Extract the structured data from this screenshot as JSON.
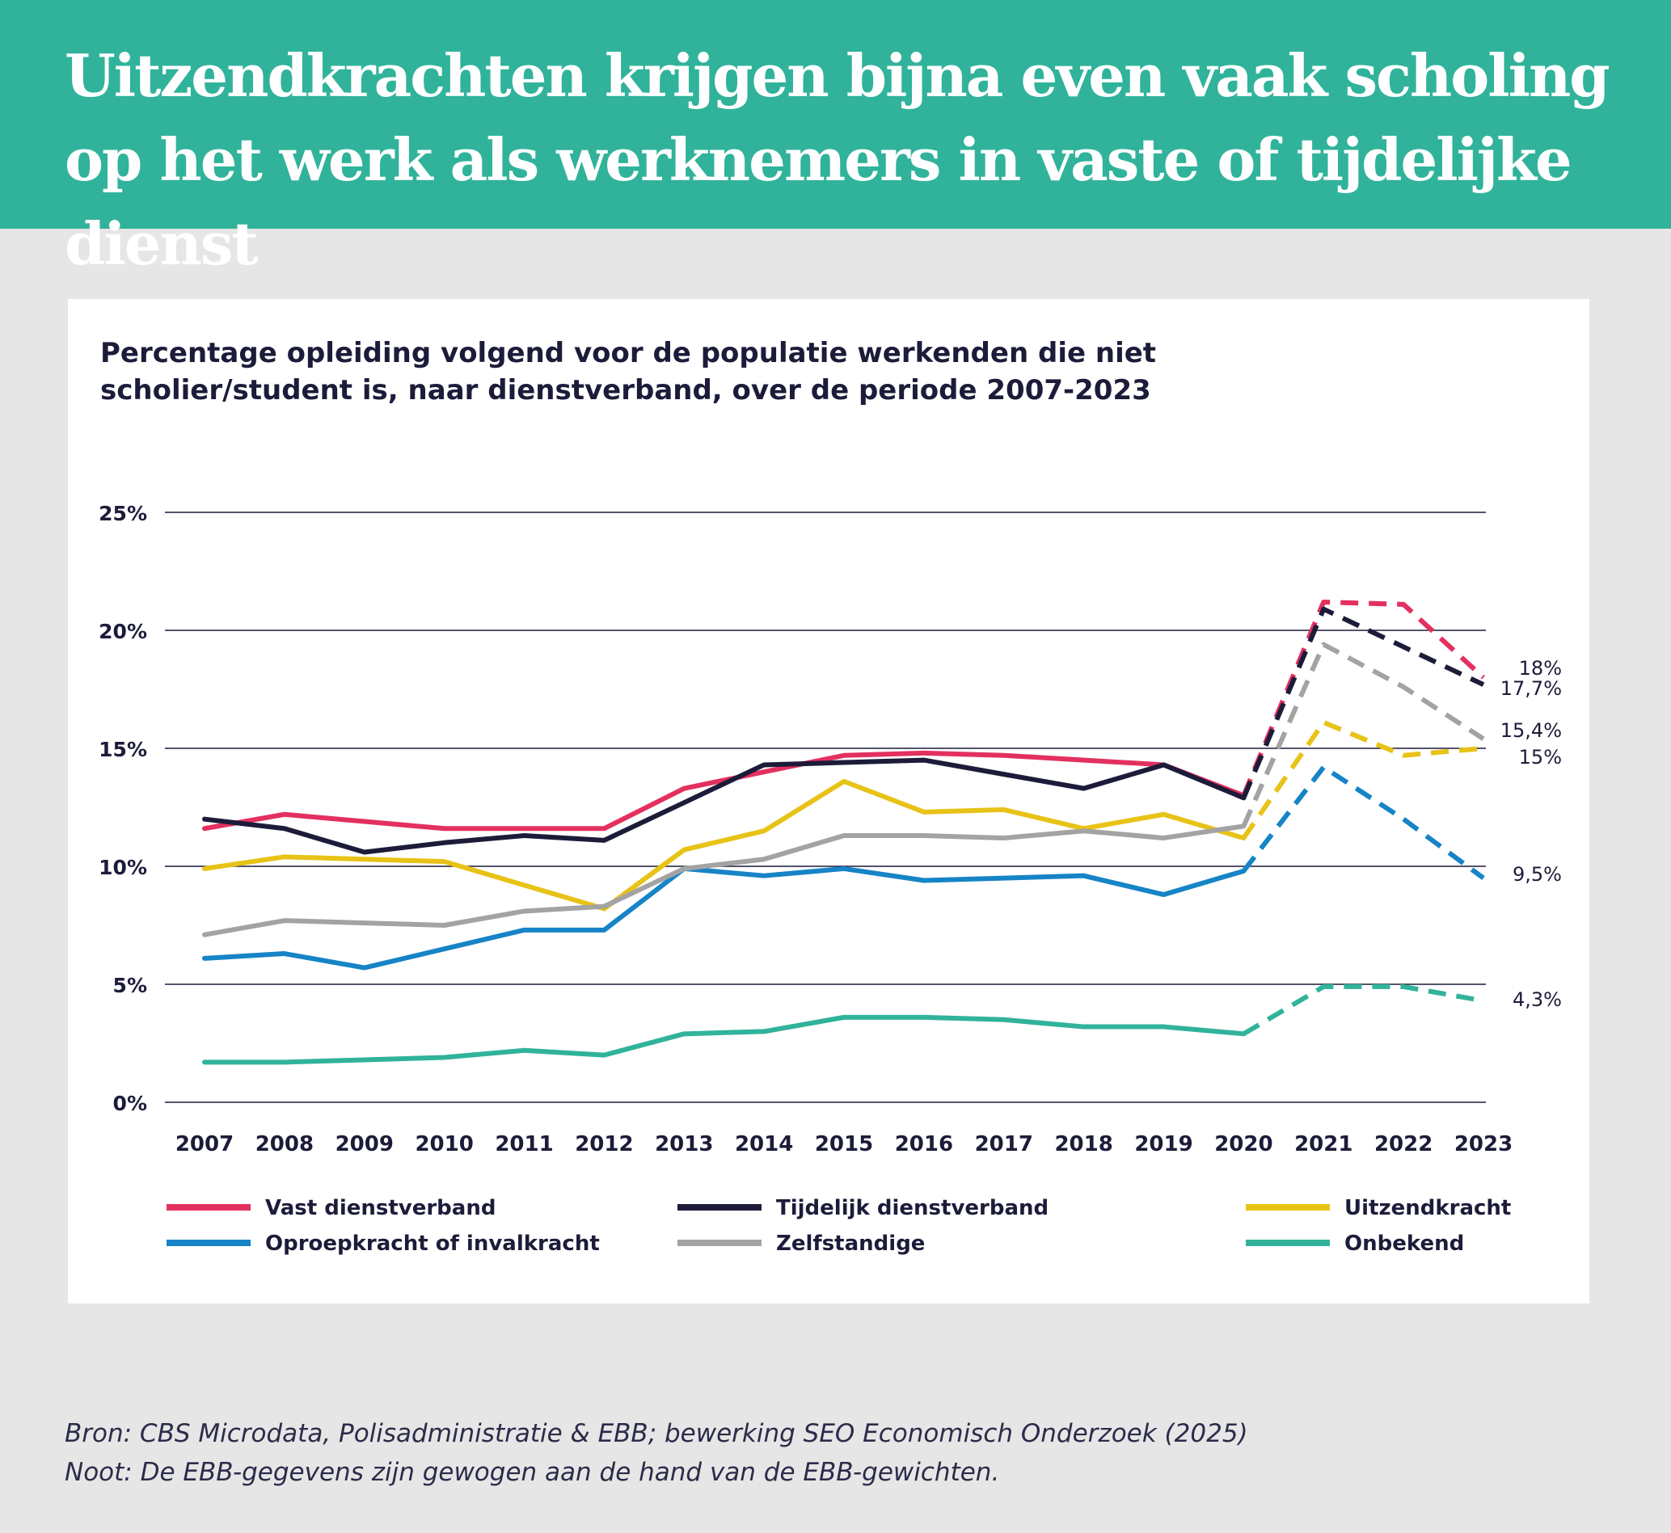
{
  "header": {
    "title": "Uitzendkrachten krijgen bijna even vaak scholing op het werk als werknemers in vaste of tijdelijke dienst"
  },
  "footer": {
    "source": "Bron: CBS Microdata, Polisadministratie & EBB; bewerking SEO Economisch Onderzoek (2025)",
    "note": "Noot: De EBB-gegevens zijn gewogen aan de hand van de EBB-gewichten."
  },
  "colors": {
    "header_bg": "#30b39a",
    "page_bg": "#e6e6e6",
    "text_dark": "#1c1c3a"
  },
  "chart_data": {
    "type": "line",
    "title": "Percentage opleiding volgend voor de populatie werkenden die niet scholier/student is, naar dienstverband, over de periode 2007-2023",
    "xlabel": "",
    "ylabel": "",
    "categories": [
      "2007",
      "2008",
      "2009",
      "2010",
      "2011",
      "2012",
      "2013",
      "2014",
      "2015",
      "2016",
      "2017",
      "2018",
      "2019",
      "2020",
      "2021",
      "2022",
      "2023"
    ],
    "ylim": [
      0,
      25
    ],
    "yticks": [
      0,
      5,
      10,
      15,
      20,
      25
    ],
    "ytick_labels": [
      "0%",
      "5%",
      "10%",
      "15%",
      "20%",
      "25%"
    ],
    "dashed_from_index": 13,
    "grid": true,
    "legend_position": "bottom",
    "series": [
      {
        "name": "Vast dienstverband",
        "color": "#e3305f",
        "values": [
          11.6,
          12.2,
          11.9,
          11.6,
          11.6,
          11.6,
          13.3,
          14.0,
          14.7,
          14.8,
          14.7,
          14.5,
          14.3,
          13.0,
          21.2,
          21.1,
          18.0
        ],
        "end_label": "18%"
      },
      {
        "name": "Tijdelijk dienstverband",
        "color": "#1c1c3a",
        "values": [
          12.0,
          11.6,
          10.6,
          11.0,
          11.3,
          11.1,
          12.7,
          14.3,
          14.4,
          14.5,
          13.9,
          13.3,
          14.3,
          12.9,
          20.9,
          19.3,
          17.7
        ],
        "end_label": "17,7%"
      },
      {
        "name": "Uitzendkracht",
        "color": "#e8c317",
        "values": [
          9.9,
          10.4,
          10.3,
          10.2,
          9.2,
          8.2,
          10.7,
          11.5,
          13.6,
          12.3,
          12.4,
          11.6,
          12.2,
          11.2,
          16.1,
          14.7,
          15.0
        ],
        "end_label": "15%"
      },
      {
        "name": "Oproepkracht of invalkracht",
        "color": "#1684c6",
        "values": [
          6.1,
          6.3,
          5.7,
          6.5,
          7.3,
          7.3,
          9.9,
          9.6,
          9.9,
          9.4,
          9.5,
          9.6,
          8.8,
          9.8,
          14.2,
          12.0,
          9.5
        ],
        "end_label": "9,5%"
      },
      {
        "name": "Zelfstandige",
        "color": "#a3a3a3",
        "values": [
          7.1,
          7.7,
          7.6,
          7.5,
          8.1,
          8.3,
          9.9,
          10.3,
          11.3,
          11.3,
          11.2,
          11.5,
          11.2,
          11.7,
          19.4,
          17.6,
          15.4
        ],
        "end_label": "15,4%"
      },
      {
        "name": "Onbekend",
        "color": "#30b39a",
        "values": [
          1.7,
          1.7,
          1.8,
          1.9,
          2.2,
          2.0,
          2.9,
          3.0,
          3.6,
          3.6,
          3.5,
          3.2,
          3.2,
          2.9,
          4.9,
          4.9,
          4.3
        ],
        "end_label": "4,3%"
      }
    ]
  }
}
